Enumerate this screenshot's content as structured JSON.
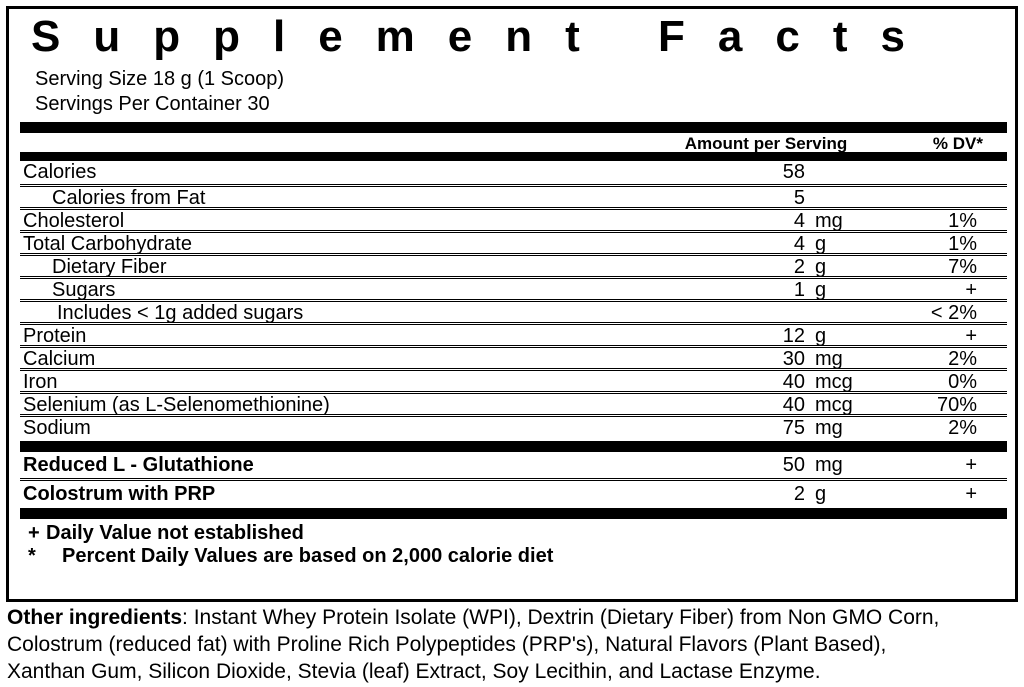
{
  "label": {
    "title": "Supplement Facts",
    "serving_size": "Serving Size 18 g (1 Scoop)",
    "servings_per_container": "Servings Per Container 30",
    "columns": {
      "amount": "Amount per Serving",
      "dv": "% DV*"
    },
    "rows": [
      {
        "name": "Calories",
        "amount": "58",
        "unit": "",
        "dv": "",
        "indent": 0
      },
      {
        "name": "Calories from Fat",
        "amount": "5",
        "unit": "",
        "dv": "",
        "indent": 1
      },
      {
        "name": "Cholesterol",
        "amount": "4",
        "unit": "mg",
        "dv": "1%",
        "indent": 0
      },
      {
        "name": "Total Carbohydrate",
        "amount": "4",
        "unit": "g",
        "dv": "1%",
        "indent": 0
      },
      {
        "name": "Dietary Fiber",
        "amount": "2",
        "unit": "g",
        "dv": "7%",
        "indent": 1
      },
      {
        "name": "Sugars",
        "amount": "1",
        "unit": "g",
        "dv": "+",
        "indent": 1
      },
      {
        "name": "Includes < 1g added sugars",
        "amount": "",
        "unit": "",
        "dv": "< 2%",
        "indent": 2
      },
      {
        "name": "Protein",
        "amount": "12",
        "unit": "g",
        "dv": "+",
        "indent": 0
      },
      {
        "name": "Calcium",
        "amount": "30",
        "unit": "mg",
        "dv": "2%",
        "indent": 0
      },
      {
        "name": "Iron",
        "amount": "40",
        "unit": "mcg",
        "dv": "0%",
        "indent": 0
      },
      {
        "name": "Selenium (as L-Selenomethionine)",
        "amount": "40",
        "unit": "mcg",
        "dv": "70%",
        "indent": 0
      },
      {
        "name": "Sodium",
        "amount": "75",
        "unit": "mg",
        "dv": "2%",
        "indent": 0
      }
    ],
    "extra_rows": [
      {
        "name": "Reduced L - Glutathione",
        "amount": "50",
        "unit": "mg",
        "dv": "+"
      },
      {
        "name": "Colostrum with PRP",
        "amount": "2",
        "unit": "g",
        "dv": "+"
      }
    ],
    "footnotes": [
      {
        "symbol": "+",
        "text": "Daily Value not established"
      },
      {
        "symbol": "*",
        "text": "Percent Daily Values are based on 2,000 calorie diet"
      }
    ],
    "other_ingredients": {
      "heading": "Other ingredients",
      "line1_rest": ": Instant Whey Protein Isolate (WPI), Dextrin (Dietary Fiber) from Non GMO Corn,",
      "line2": "Colostrum (reduced fat) with Proline Rich Polypeptides (PRP's), Natural Flavors (Plant Based),",
      "line3": "Xanthan Gum, Silicon Dioxide, Stevia (leaf) Extract, Soy Lecithin, and Lactase Enzyme."
    },
    "colors": {
      "text": "#000000",
      "background": "#ffffff",
      "border": "#000000"
    }
  }
}
